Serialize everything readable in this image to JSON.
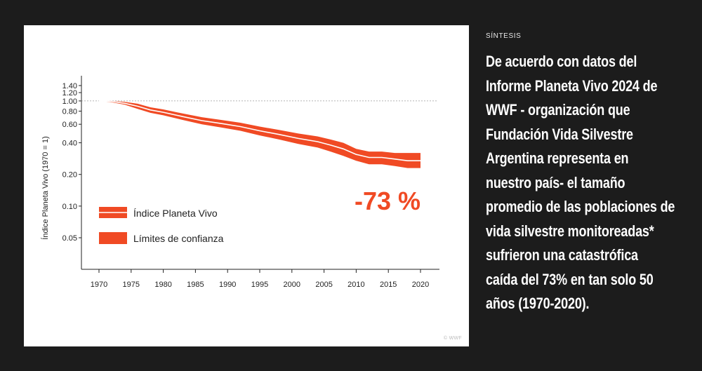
{
  "chart_data": {
    "type": "area",
    "title": "",
    "xlabel": "",
    "ylabel": "Índice Planeta Vivo (1970 = 1)",
    "y_scale": "log",
    "ylim": [
      0.03,
      1.4
    ],
    "xlim": [
      1970,
      2020
    ],
    "x_ticks": [
      "1970",
      "1975",
      "1980",
      "1985",
      "1990",
      "1995",
      "2000",
      "2005",
      "2010",
      "2015",
      "2020"
    ],
    "y_ticks": [
      {
        "value": 1.4,
        "label": "1.40"
      },
      {
        "value": 1.2,
        "label": "1.20"
      },
      {
        "value": 1.0,
        "label": "1.00"
      },
      {
        "value": 0.8,
        "label": "0.80"
      },
      {
        "value": 0.6,
        "label": "0.60"
      },
      {
        "value": 0.4,
        "label": "0.40"
      },
      {
        "value": 0.2,
        "label": "0.20"
      },
      {
        "value": 0.1,
        "label": "0.10"
      },
      {
        "value": 0.05,
        "label": "0.05"
      }
    ],
    "reference_line": 1.0,
    "series": [
      {
        "name": "Índice Planeta Vivo",
        "color": "#f04a24",
        "x": [
          1970,
          1972,
          1974,
          1976,
          1978,
          1980,
          1983,
          1986,
          1989,
          1992,
          1995,
          1998,
          2001,
          2004,
          2006,
          2008,
          2010,
          2012,
          2014,
          2016,
          2018,
          2020
        ],
        "y": [
          1.0,
          0.99,
          0.95,
          0.89,
          0.82,
          0.78,
          0.71,
          0.65,
          0.61,
          0.57,
          0.52,
          0.48,
          0.44,
          0.41,
          0.38,
          0.35,
          0.31,
          0.29,
          0.29,
          0.28,
          0.27,
          0.27
        ]
      },
      {
        "name": "Límites de confianza",
        "color": "#f04a24",
        "x": [
          1970,
          1972,
          1974,
          1976,
          1978,
          1980,
          1983,
          1986,
          1989,
          1992,
          1995,
          1998,
          2001,
          2004,
          2006,
          2008,
          2010,
          2012,
          2014,
          2016,
          2018,
          2020
        ],
        "upper": [
          1.0,
          1.0,
          0.98,
          0.94,
          0.87,
          0.83,
          0.76,
          0.7,
          0.66,
          0.62,
          0.57,
          0.53,
          0.49,
          0.46,
          0.43,
          0.4,
          0.35,
          0.33,
          0.33,
          0.32,
          0.32,
          0.32
        ],
        "lower": [
          1.0,
          0.97,
          0.92,
          0.84,
          0.77,
          0.73,
          0.66,
          0.6,
          0.56,
          0.52,
          0.47,
          0.43,
          0.39,
          0.36,
          0.33,
          0.3,
          0.27,
          0.25,
          0.25,
          0.24,
          0.23,
          0.23
        ]
      }
    ],
    "legend": [
      {
        "label": "Índice Planeta Vivo",
        "style": "line"
      },
      {
        "label": "Límites de confianza",
        "style": "band"
      }
    ],
    "legend_position": "bottom-left",
    "annotation": "-73 %"
  },
  "credit": "© WWF",
  "side": {
    "kicker": "SÍNTESIS",
    "lines": [
      "De acuerdo con datos del",
      "Informe Planeta Vivo 2024 de",
      "WWF - organización que",
      "Fundación Vida Silvestre",
      "Argentina representa en",
      "nuestro país- el tamaño",
      "promedio de las poblaciones de",
      "vida silvestre monitoreadas*",
      "sufrieron una catastrófica",
      "caída del 73% en tan solo 50",
      "años (1970-2020)."
    ]
  },
  "colors": {
    "background": "#1c1c1c",
    "panel": "#ffffff",
    "accent": "#f04a24"
  }
}
